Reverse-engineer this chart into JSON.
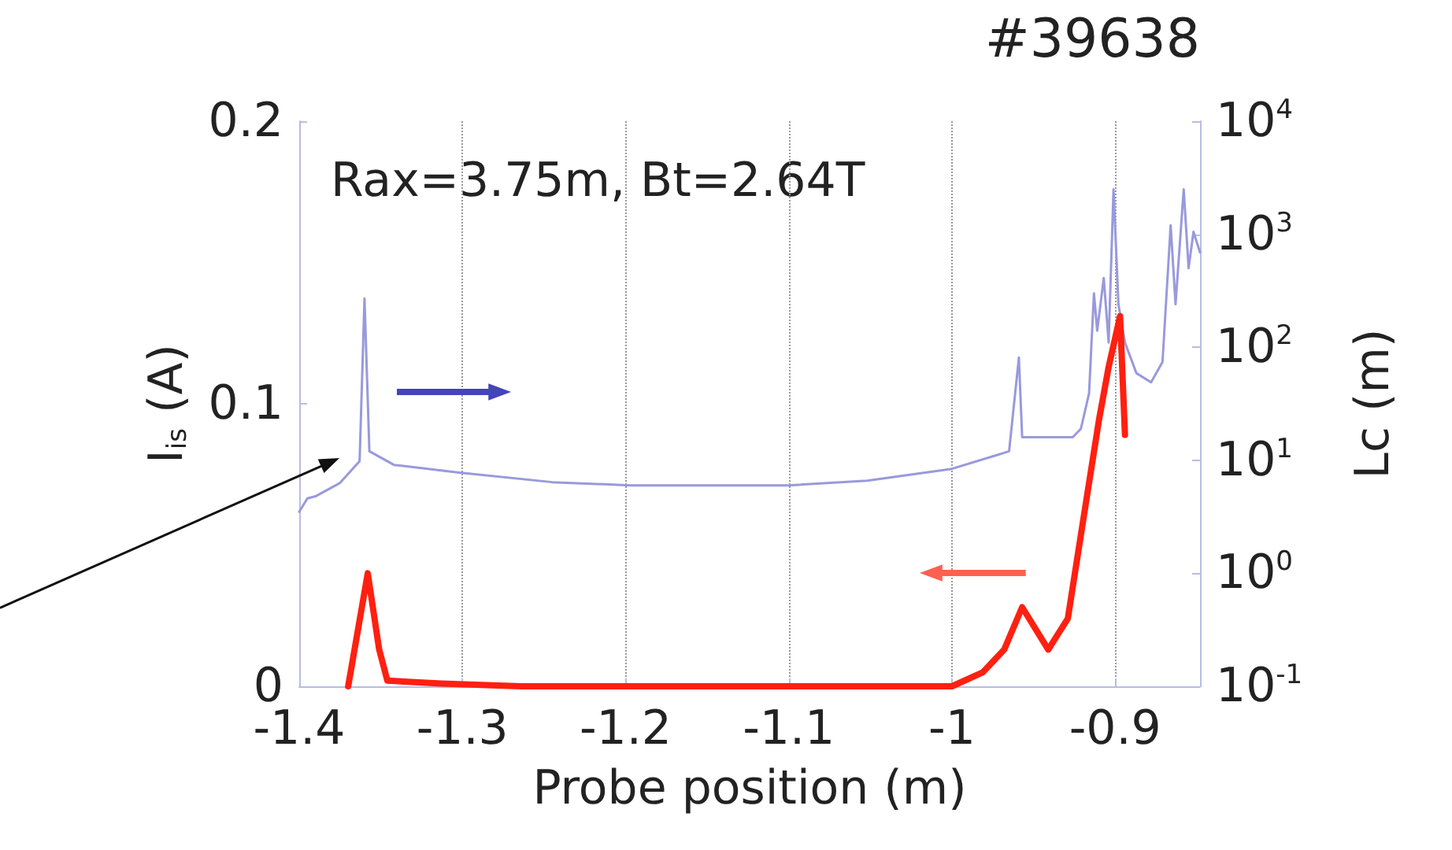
{
  "chart_data": {
    "type": "line",
    "title": "#39638",
    "xlabel": "Probe position (m)",
    "ylabel": "I$_{is}$ (A)",
    "y2label": "Lc (m)",
    "annotations": [
      "Rax=3.75m, Bt=2.64T"
    ],
    "xlim": [
      -1.4,
      -0.848
    ],
    "xticks": [
      -1.4,
      -1.3,
      -1.2,
      -1.1,
      -1,
      -0.9
    ],
    "ylim": [
      0,
      0.2
    ],
    "yticks": [
      0,
      0.1,
      0.2
    ],
    "y2lim": [
      0.1,
      10000
    ],
    "y2ticks": [
      {
        "value": 0.1,
        "label": "10$^{-1}$"
      },
      {
        "value": 1,
        "label": "10$^{0}$"
      },
      {
        "value": 10,
        "label": "10$^{1}$"
      },
      {
        "value": 100,
        "label": "10$^{2}$"
      },
      {
        "value": 1000,
        "label": "10$^{3}$"
      },
      {
        "value": 10000,
        "label": "10$^{4}$"
      }
    ],
    "log": "y2",
    "grid": "x",
    "marker": "none",
    "line_style": "solid",
    "series": [
      {
        "color": "#9999dd",
        "axis": "y2",
        "x": [
          -1.4,
          -1.395,
          -1.39,
          -1.375,
          -1.363,
          -1.36,
          -1.357,
          -1.342,
          -1.303,
          -1.245,
          -1.197,
          -1.148,
          -1.1,
          -1.052,
          -1.0,
          -0.965,
          -0.959,
          -0.957,
          -0.926,
          -0.921,
          -0.916,
          -0.913,
          -0.911,
          -0.907,
          -0.904,
          -0.901,
          -0.898,
          -0.894,
          -0.887,
          -0.878,
          -0.871,
          -0.866,
          -0.863,
          -0.858,
          -0.855,
          -0.852,
          -0.848
        ],
        "values": [
          3.5,
          4.6,
          4.8,
          6.3,
          9.8,
          270,
          12,
          9.1,
          7.8,
          6.4,
          6.0,
          6.0,
          6.0,
          6.6,
          8.4,
          12,
          81,
          16,
          16,
          19,
          39,
          300,
          140,
          410,
          110,
          2500,
          240,
          110,
          59,
          49,
          74,
          1200,
          240,
          2500,
          500,
          1050,
          690
        ]
      },
      {
        "color": "#ff2010",
        "x": [
          -1.37,
          -1.358,
          -1.351,
          -1.346,
          -1.313,
          -1.264,
          -1.2,
          -1.1,
          -1.0,
          -0.981,
          -0.968,
          -0.957,
          -0.941,
          -0.929,
          -0.919,
          -0.91,
          -0.904,
          -0.897,
          -0.894
        ],
        "values": [
          0,
          0.04,
          0.013,
          0.002,
          0.001,
          0,
          0,
          0,
          0,
          0.005,
          0.013,
          0.028,
          0.013,
          0.024,
          0.061,
          0.094,
          0.113,
          0.131,
          0.089
        ]
      }
    ]
  }
}
